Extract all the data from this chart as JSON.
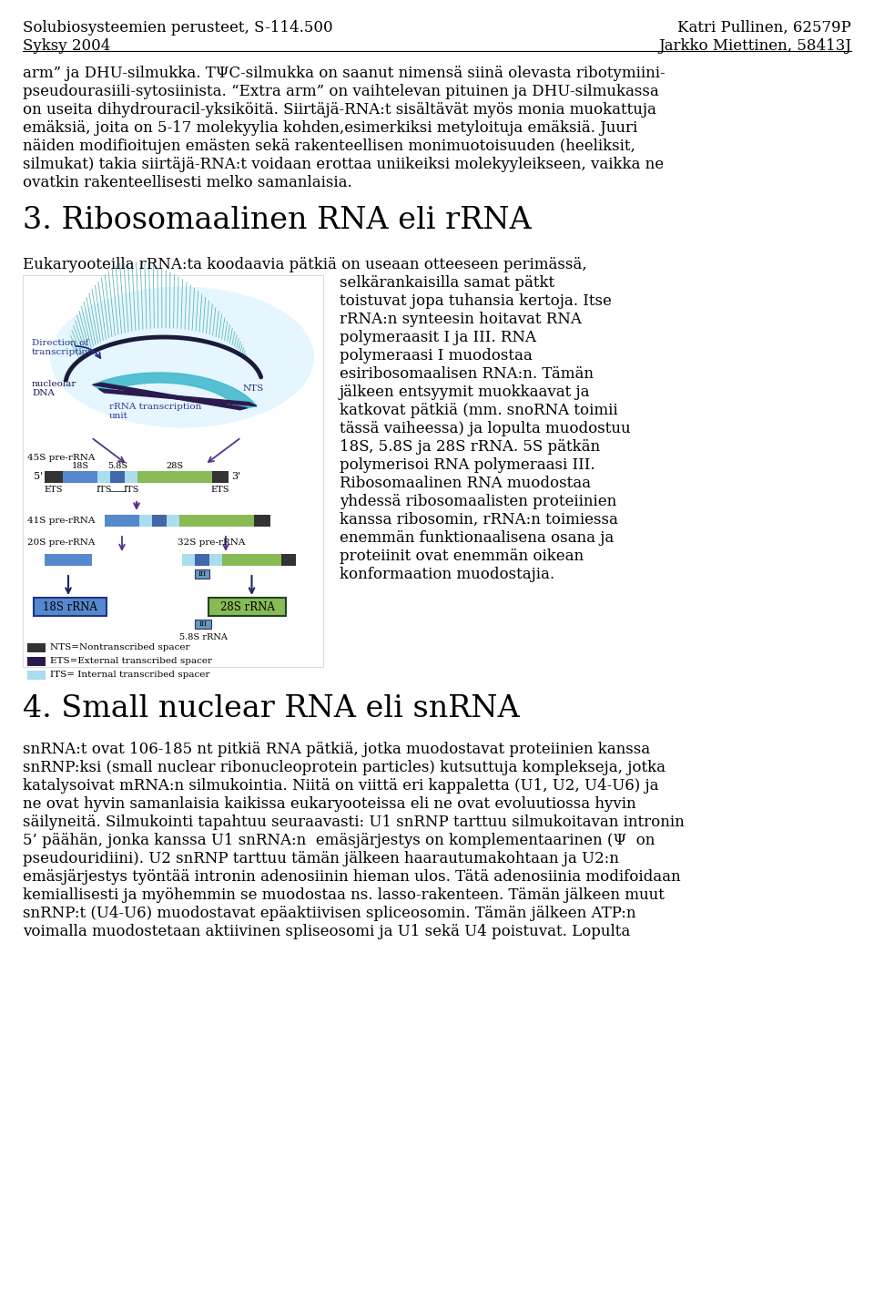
{
  "bg_color": "#ffffff",
  "text_color": "#000000",
  "header_left_line1": "Solubiosysteemien perusteet, S-114.500",
  "header_left_line2": "Syksy 2004",
  "header_right_line1": "Katri Pullinen, 62579P",
  "header_right_line2": "Jarkko Miettinen, 58413J",
  "body_fontsize": 12,
  "header_fontsize": 12,
  "section3_title": "3. Ribosomaalinen RNA eli rRNA",
  "section4_title": "4. Small nuclear RNA eli snRNA",
  "section3_title_fontsize": 24,
  "section4_title_fontsize": 24,
  "para1": "arm” ja DHU-silmukka. TΨC-silmukka on saanut nimensä siinä olevasta ribotymiini-",
  "para2": "pseudourasiili-sytosiinista. “Extra arm” on vaihtelevan pituinen ja DHU-silmukassa",
  "para3": "on useita dihydrouracil-yksiköitä. Siirtäjä-RNA:t sisältävät myös monia muokattuja",
  "para4": "emäksiä, joita on 5-17 molekyylia kohden,esimerkiksi metyloituja emäksiä. Juuri",
  "para5": "näiden modifioitujen emästen sekä rakenteellisen monimuotoisuuden (heeliksit,",
  "para6": "silmukat) takia siirtäjä-RNA:t voidaan erottaa uniikeiksi molekyyleikseen, vaikka ne",
  "para7": "ovatkin rakenteellisesti melko samanlaisia.",
  "para_ribo1": "Eukaryooteilla rRNA:ta koodaavia pätkiä on useaan otteeseen perimässä,",
  "para_right1": "selkärankaisilla samat pätkt",
  "para_right2": "toistuvat jopa tuhansia kertoja. Itse",
  "para_right3": "rRNA:n synteesin hoitavat RNA",
  "para_right4": "polymeraasit I ja III. RNA",
  "para_right5": "polymeraasi I muodostaa",
  "para_right6": "esiribosomaalisen RNA:n. Tämän",
  "para_right7": "jälkeen entsyymit muokkaavat ja",
  "para_right8": "katkovat pätkiä (mm. snoRNA toimii",
  "para_right9": "tässä vaiheessa) ja lopulta muodostuu",
  "para_right10": "18S, 5.8S ja 28S rRNA. 5S pätkän",
  "para_right11": "polymerisoi RNA polymeraasi III.",
  "para_right12": "Ribosomaalinen RNA muodostaa",
  "para_right13": "yhdessä ribosomaalisten proteiinien",
  "para_right14": "kanssa ribosomin, rRNA:n toimiessa",
  "para_right15": "enemmän funktionaalisena osana ja",
  "para_right16": "proteiinit ovat enemmän oikean",
  "para_right17": "konformaation muodostajia.",
  "snrna_para1": "snRNA:t ovat 106-185 nt pitkiä RNA pätkiä, jotka muodostavat proteiinien kanssa",
  "snrna_para2": "snRNP:ksi (small nuclear ribonucleoprotein particles) kutsuttuja komplekseja, jotka",
  "snrna_para3": "katalysoivat mRNA:n silmukointia. Niitä on viittä eri kappaletta (U1, U2, U4-U6) ja",
  "snrna_para4": "ne ovat hyvin samanlaisia kaikissa eukaryooteissa eli ne ovat evoluutiossa hyvin",
  "snrna_para5": "säilyneitä. Silmukointi tapahtuu seuraavasti: U1 snRNP tarttuu silmukoitavan intronin",
  "snrna_para6": "5’ päähän, jonka kanssa U1 snRNA:n  emäsjärjestys on komplementaarinen (Ψ  on",
  "snrna_para7": "pseudouridiini). U2 snRNP tarttuu tämän jälkeen haarautumakohtaan ja U2:n",
  "snrna_para8": "emäsjärjestys työntää intronin adenosiinin hieman ulos. Tätä adenosiinia modifoidaan",
  "snrna_para9": "kemiallisesti ja myöhemmin se muodostaa ns. lasso-rakenteen. Tämän jälkeen muut",
  "snrna_para10": "snRNP:t (U4-U6) muodostavat epäaktiivisen spliceosomin. Tämän jälkeen ATP:n",
  "snrna_para11": "voimalla muodostetaan aktiivinen spliseosomi ja U1 sekä U4 poistuvat. Lopulta"
}
